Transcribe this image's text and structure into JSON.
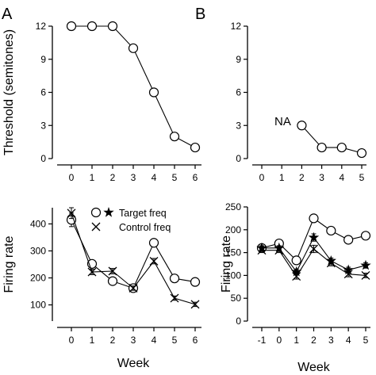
{
  "panel_labels": [
    "A",
    "B"
  ],
  "legend": {
    "target": "Target freq",
    "control": "Control freq"
  },
  "chart_data": [
    {
      "id": "A-top",
      "type": "line",
      "ylabel": "Threshold (semitones)",
      "xlabel": "",
      "x": [
        0,
        1,
        2,
        3,
        4,
        5,
        6
      ],
      "xticks": [
        "0",
        "1",
        "2",
        "3",
        "4",
        "5",
        "6"
      ],
      "yticks": [
        0,
        3,
        6,
        9,
        12
      ],
      "ylim": [
        0,
        12
      ],
      "series": [
        {
          "marker": "circle",
          "values": [
            12,
            12,
            12,
            10,
            6,
            2,
            1
          ]
        }
      ]
    },
    {
      "id": "B-top",
      "type": "line",
      "ylabel": "",
      "xlabel": "",
      "x": [
        0,
        1,
        2,
        3,
        4,
        5
      ],
      "xticks": [
        "0",
        "1",
        "2",
        "3",
        "4",
        "5"
      ],
      "yticks": [
        0,
        3,
        6,
        9,
        12
      ],
      "ylim": [
        0,
        12
      ],
      "annotation": "NA",
      "series": [
        {
          "marker": "circle",
          "values": [
            null,
            null,
            3,
            1,
            1,
            0.5
          ]
        }
      ]
    },
    {
      "id": "A-bottom",
      "type": "line",
      "ylabel": "Firing rate",
      "xlabel": "Week",
      "x": [
        0,
        1,
        2,
        3,
        4,
        5,
        6
      ],
      "xticks": [
        "0",
        "1",
        "2",
        "3",
        "4",
        "5",
        "6"
      ],
      "yticks": [
        100,
        200,
        300,
        400
      ],
      "ylim": [
        40,
        460
      ],
      "series": [
        {
          "name": "Target freq",
          "marker": "circle",
          "values": [
            415,
            252,
            188,
            162,
            330,
            198,
            185
          ],
          "err": [
            25,
            8,
            12,
            8,
            12,
            10,
            12
          ]
        },
        {
          "name": "Control freq",
          "marker": "cross",
          "values": [
            440,
            222,
            225,
            162,
            262,
            125,
            102
          ],
          "err": [
            20,
            10,
            10,
            8,
            10,
            8,
            8
          ]
        }
      ]
    },
    {
      "id": "B-bottom",
      "type": "line",
      "ylabel": "Firing rate",
      "xlabel": "Week",
      "x": [
        -1,
        0,
        1,
        2,
        3,
        4,
        5
      ],
      "xticks": [
        "-1",
        "0",
        "1",
        "2",
        "3",
        "4",
        "5"
      ],
      "yticks": [
        0,
        50,
        100,
        150,
        200,
        250
      ],
      "ylim": [
        0,
        250
      ],
      "series": [
        {
          "name": "circle",
          "marker": "circle",
          "values": [
            160,
            170,
            133,
            225,
            198,
            178,
            187
          ],
          "err": [
            5,
            5,
            6,
            6,
            8,
            8,
            6
          ]
        },
        {
          "name": "star",
          "marker": "star",
          "values": [
            160,
            160,
            108,
            183,
            132,
            112,
            122
          ],
          "err": [
            5,
            5,
            6,
            8,
            6,
            6,
            6
          ]
        },
        {
          "name": "cross",
          "marker": "cross",
          "values": [
            155,
            155,
            98,
            158,
            127,
            103,
            100
          ],
          "err": [
            5,
            5,
            6,
            8,
            6,
            6,
            5
          ]
        }
      ]
    }
  ]
}
